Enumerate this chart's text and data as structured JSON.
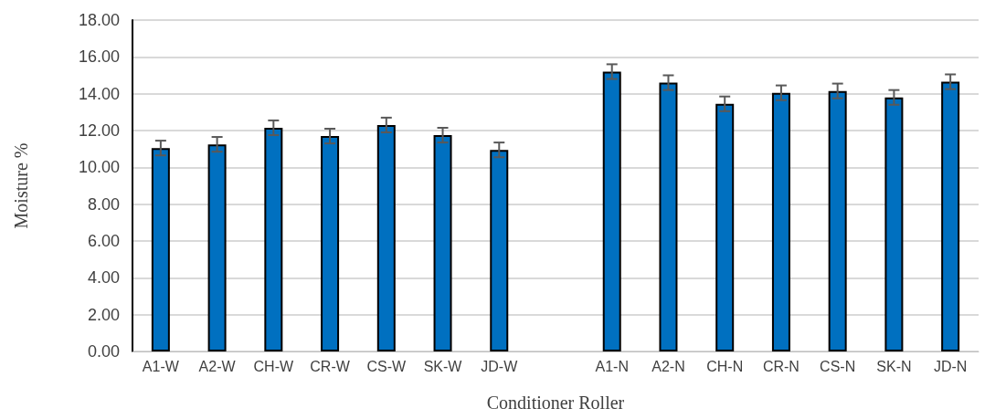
{
  "chart_data": {
    "type": "bar",
    "xlabel": "Conditioner Roller",
    "ylabel": "Moisture %",
    "categories": [
      "A1-W",
      "A2-W",
      "CH-W",
      "CR-W",
      "CS-W",
      "SK-W",
      "JD-W",
      null,
      "A1-N",
      "A2-N",
      "CH-N",
      "CR-N",
      "CS-N",
      "SK-N",
      "JD-N"
    ],
    "values": [
      11.05,
      11.25,
      12.15,
      11.7,
      12.3,
      11.75,
      10.95,
      null,
      15.2,
      14.6,
      13.45,
      14.05,
      14.15,
      13.8,
      14.65
    ],
    "errors": [
      0.4,
      0.4,
      0.4,
      0.4,
      0.4,
      0.4,
      0.4,
      null,
      0.4,
      0.4,
      0.4,
      0.4,
      0.4,
      0.4,
      0.4
    ],
    "color": "#0070c0",
    "ylim": [
      0,
      18
    ],
    "yticks": [
      {
        "value": 0,
        "label": "0.00"
      },
      {
        "value": 2,
        "label": "2.00"
      },
      {
        "value": 4,
        "label": "4.00"
      },
      {
        "value": 6,
        "label": "6.00"
      },
      {
        "value": 8,
        "label": "8.00"
      },
      {
        "value": 10,
        "label": "10.00"
      },
      {
        "value": 12,
        "label": "12.00"
      },
      {
        "value": 14,
        "label": "14.00"
      },
      {
        "value": 16,
        "label": "16.00"
      },
      {
        "value": 18,
        "label": "18.00"
      }
    ],
    "grid": true
  }
}
